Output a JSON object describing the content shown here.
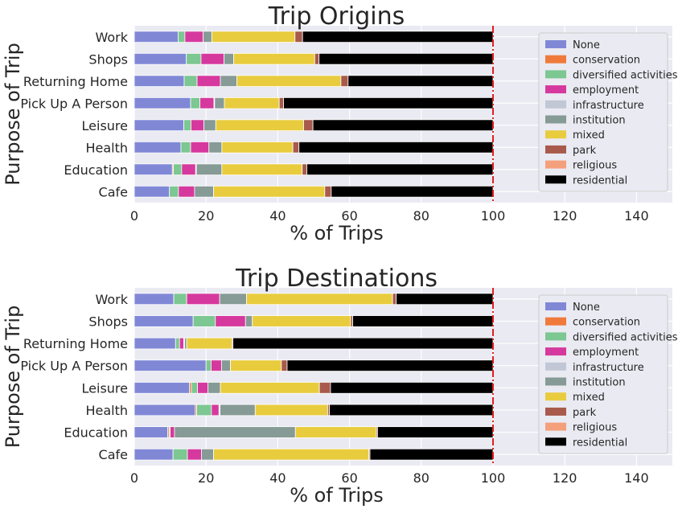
{
  "chart_data": [
    {
      "type": "bar",
      "orientation": "horizontal",
      "stacked": true,
      "title": "Trip Origins",
      "xlabel": "% of Trips",
      "ylabel": "Purpose of Trip",
      "xlim": [
        0,
        150
      ],
      "xticks": [
        0,
        20,
        40,
        60,
        80,
        100,
        120,
        140
      ],
      "reference_line": 100,
      "grid": true,
      "legend_position": "upper-right",
      "categories": [
        "Work",
        "Shops",
        "Returning Home",
        "Pick Up A Person",
        "Leisure",
        "Health",
        "Education",
        "Cafe"
      ],
      "series": [
        {
          "name": "None",
          "values": [
            12.2,
            14.5,
            13.9,
            15.7,
            13.8,
            13.0,
            10.6,
            9.8
          ]
        },
        {
          "name": "conservation",
          "values": [
            0,
            0,
            0,
            0,
            0,
            0,
            0.3,
            0
          ]
        },
        {
          "name": "diversified activities",
          "values": [
            1.9,
            4.1,
            3.6,
            2.6,
            2.0,
            2.7,
            2.3,
            2.5
          ]
        },
        {
          "name": "employment",
          "values": [
            5.1,
            6.4,
            6.5,
            3.9,
            3.6,
            5.1,
            3.9,
            4.5
          ]
        },
        {
          "name": "infrastructure",
          "values": [
            0,
            0,
            0,
            0.2,
            0,
            0,
            0.2,
            0
          ]
        },
        {
          "name": "institution",
          "values": [
            2.4,
            2.7,
            4.6,
            2.7,
            3.3,
            3.6,
            7.1,
            5.3
          ]
        },
        {
          "name": "mixed",
          "values": [
            23.2,
            22.6,
            29.0,
            15.3,
            24.5,
            19.8,
            22.4,
            31.0
          ]
        },
        {
          "name": "park",
          "values": [
            2.1,
            1.2,
            2.0,
            1.2,
            2.6,
            1.7,
            1.3,
            1.8
          ]
        },
        {
          "name": "religious",
          "values": [
            0,
            0,
            0,
            0,
            0,
            0,
            0,
            0
          ]
        },
        {
          "name": "residential",
          "values": [
            53.1,
            48.5,
            40.4,
            58.4,
            50.2,
            54.1,
            51.9,
            45.1
          ]
        }
      ]
    },
    {
      "type": "bar",
      "orientation": "horizontal",
      "stacked": true,
      "title": "Trip Destinations",
      "xlabel": "% of Trips",
      "ylabel": "Purpose of Trip",
      "xlim": [
        0,
        150
      ],
      "xticks": [
        0,
        20,
        40,
        60,
        80,
        100,
        120,
        140
      ],
      "reference_line": 100,
      "grid": true,
      "legend_position": "upper-right",
      "categories": [
        "Work",
        "Shops",
        "Returning Home",
        "Pick Up A Person",
        "Leisure",
        "Health",
        "Education",
        "Cafe"
      ],
      "series": [
        {
          "name": "None",
          "values": [
            11.0,
            16.4,
            11.5,
            20.0,
            15.4,
            17.0,
            9.3,
            10.8
          ]
        },
        {
          "name": "conservation",
          "values": [
            0,
            0,
            0,
            0,
            0.5,
            0.4,
            0.4,
            0
          ]
        },
        {
          "name": "diversified activities",
          "values": [
            3.6,
            6.2,
            1.1,
            1.4,
            1.7,
            4.1,
            0.3,
            4.0
          ]
        },
        {
          "name": "employment",
          "values": [
            9.2,
            8.4,
            1.2,
            2.9,
            2.9,
            2.1,
            1.2,
            3.9
          ]
        },
        {
          "name": "infrastructure",
          "values": [
            0,
            0,
            0.2,
            0,
            0,
            0.3,
            0,
            0
          ]
        },
        {
          "name": "institution",
          "values": [
            7.5,
            1.9,
            0.6,
            2.5,
            3.5,
            9.8,
            33.7,
            3.4
          ]
        },
        {
          "name": "mixed",
          "values": [
            40.7,
            27.4,
            12.6,
            14.2,
            27.6,
            20.2,
            22.6,
            43.3
          ]
        },
        {
          "name": "park",
          "values": [
            1.0,
            0.6,
            0.3,
            1.6,
            3.1,
            0.5,
            0.3,
            0.3
          ]
        },
        {
          "name": "religious",
          "values": [
            0,
            0,
            0,
            0,
            0,
            0,
            0,
            0
          ]
        },
        {
          "name": "residential",
          "values": [
            27.0,
            39.1,
            72.5,
            57.4,
            45.3,
            45.6,
            32.2,
            34.3
          ]
        }
      ]
    }
  ],
  "legend": {
    "items": [
      {
        "label": "None",
        "color": "#8088d6"
      },
      {
        "label": "conservation",
        "color": "#f07a3b"
      },
      {
        "label": "diversified activities",
        "color": "#7cc792"
      },
      {
        "label": "employment",
        "color": "#d6399e"
      },
      {
        "label": "infrastructure",
        "color": "#c2c7d6"
      },
      {
        "label": "institution",
        "color": "#869a96"
      },
      {
        "label": "mixed",
        "color": "#e8cc3e"
      },
      {
        "label": "park",
        "color": "#a85a4c"
      },
      {
        "label": "religious",
        "color": "#f5a07c"
      },
      {
        "label": "residential",
        "color": "#000000"
      }
    ]
  },
  "style": {
    "plot_background": "#eaeaf2",
    "grid_color": "#ffffff",
    "reference_line_color": "#e02020",
    "text_color": "#262626"
  }
}
